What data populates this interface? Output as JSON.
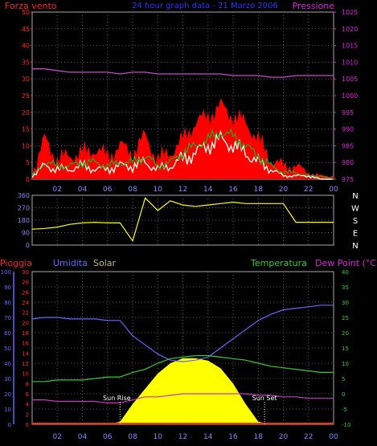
{
  "header": {
    "left_label": "Forza vento",
    "title": "24 hour graph data - 21 Marzo 2006",
    "right_label": "Pressione"
  },
  "colors": {
    "wind_gust": "#ff0000",
    "wind_avg": "#22aa22",
    "wind_speed": "#e8ffe8",
    "pressure": "#cc44cc",
    "direction": "#ffff00",
    "rain": "#ff3300",
    "humidity": "#6666ff",
    "solar": "#ffff00",
    "temperature": "#33cc33",
    "dew_point": "#cc33cc",
    "grid": "#5a5a5a",
    "axis_left": "#ff2222",
    "axis_right": "#dd22dd",
    "tick_text": "#8888ff"
  },
  "chart_data": [
    {
      "type": "line",
      "name": "wind_pressure",
      "ylabel": "Forza vento",
      "y2label": "Pressione",
      "ylim": [
        0,
        50
      ],
      "y2lim": [
        975,
        1025
      ],
      "yticks": [
        "0",
        "5",
        "10",
        "15",
        "20",
        "25",
        "30",
        "35",
        "40",
        "45",
        "50"
      ],
      "y2ticks": [
        "975",
        "980",
        "985",
        "990",
        "995",
        "1000",
        "1005",
        "1010",
        "1015",
        "1020",
        "1025"
      ],
      "x": [
        0,
        1,
        2,
        3,
        4,
        5,
        6,
        7,
        8,
        9,
        10,
        11,
        12,
        13,
        14,
        15,
        16,
        17,
        18,
        19,
        20,
        21,
        22,
        23,
        24
      ],
      "series": [
        {
          "key": "gust",
          "values": [
            2,
            12,
            6,
            7,
            8,
            9,
            7,
            10,
            8,
            13,
            6,
            8,
            12,
            17,
            19,
            22,
            19,
            17,
            12,
            6,
            4,
            4,
            2,
            1,
            1
          ]
        },
        {
          "key": "avg",
          "values": [
            1,
            5,
            4,
            4,
            5,
            5,
            4,
            5,
            5,
            7,
            4,
            5,
            8,
            10,
            12,
            14,
            13,
            10,
            7,
            4,
            2,
            2,
            1,
            1,
            0
          ]
        },
        {
          "key": "speed",
          "values": [
            1,
            4,
            3,
            3,
            4,
            3,
            3,
            4,
            4,
            5,
            3,
            4,
            6,
            8,
            10,
            12,
            10,
            8,
            5,
            3,
            1,
            1,
            1,
            0,
            0
          ]
        },
        {
          "key": "pressure",
          "values": [
            1008,
            1008,
            1007.5,
            1007,
            1007,
            1007,
            1007,
            1006.5,
            1007,
            1007,
            1006.5,
            1006.5,
            1006.5,
            1006.5,
            1006.5,
            1006.5,
            1006,
            1006,
            1006,
            1005.5,
            1005.5,
            1006,
            1006,
            1006,
            1006
          ]
        }
      ]
    },
    {
      "type": "line",
      "name": "wind_direction",
      "ylim": [
        0,
        360
      ],
      "yticks": [
        "0",
        "90",
        "180",
        "270",
        "360"
      ],
      "compass": [
        "N",
        "W",
        "S",
        "E",
        "N"
      ],
      "x": [
        0,
        1,
        2,
        3,
        4,
        5,
        6,
        7,
        8,
        9,
        10,
        11,
        12,
        13,
        14,
        15,
        16,
        17,
        18,
        19,
        20,
        21,
        22,
        23,
        24
      ],
      "values": [
        115,
        120,
        130,
        150,
        160,
        165,
        160,
        160,
        30,
        340,
        250,
        320,
        290,
        280,
        290,
        300,
        310,
        300,
        300,
        300,
        300,
        165,
        165,
        165,
        165
      ]
    },
    {
      "type": "line",
      "name": "weather",
      "legend": [
        "Pioggia",
        "Umidita",
        "Solar",
        "Temperatura",
        "Dew Point (°C)"
      ],
      "y_rain_ticks": [
        "0",
        "2",
        "4",
        "6",
        "8",
        "10",
        "12",
        "14",
        "16",
        "18",
        "20",
        "22",
        "24",
        "26",
        "28",
        "30"
      ],
      "y_hum_ticks": [
        "0",
        "10",
        "20",
        "30",
        "40",
        "50",
        "60",
        "70",
        "80",
        "90",
        "100"
      ],
      "y_temp_ticks": [
        "-10",
        "-5",
        "0",
        "5",
        "10",
        "15",
        "20",
        "25",
        "30",
        "35",
        "40"
      ],
      "y_rain_lim": [
        0,
        30
      ],
      "y_hum_lim": [
        0,
        100
      ],
      "y_temp_lim": [
        -10,
        40
      ],
      "x": [
        0,
        1,
        2,
        3,
        4,
        5,
        6,
        7,
        8,
        9,
        10,
        11,
        12,
        13,
        14,
        15,
        16,
        17,
        18,
        19,
        20,
        21,
        22,
        23,
        24
      ],
      "series": [
        {
          "key": "humidity",
          "values": [
            69,
            70,
            70,
            69,
            69,
            69,
            68,
            68,
            58,
            52,
            46,
            42,
            41,
            42,
            44,
            50,
            56,
            62,
            68,
            72,
            75,
            76,
            77,
            78,
            78
          ]
        },
        {
          "key": "temperature",
          "values": [
            4,
            4,
            4.5,
            4.5,
            4.5,
            5,
            5.5,
            5.5,
            7,
            8,
            10,
            11.5,
            12,
            12.5,
            12.5,
            12,
            11.5,
            11,
            10,
            9,
            8.5,
            8,
            7.5,
            7,
            7
          ]
        },
        {
          "key": "dew_point",
          "values": [
            -2,
            -2,
            -2.5,
            -2.5,
            -2.5,
            -2.5,
            -3,
            -3,
            -2,
            -1,
            -1,
            -0.5,
            0,
            0,
            0,
            0,
            0,
            0,
            -0.5,
            -0.5,
            -1,
            -1,
            -1.5,
            -1.5,
            -1.5
          ]
        },
        {
          "key": "solar",
          "values": [
            0,
            0,
            0,
            0,
            0,
            0,
            0,
            0.5,
            4,
            7,
            10,
            12,
            13,
            13,
            12.5,
            11,
            8,
            4,
            0.5,
            0,
            0,
            0,
            0,
            0,
            0
          ]
        },
        {
          "key": "rain",
          "values": [
            0,
            0,
            0,
            0,
            0,
            0,
            0,
            0,
            0,
            0,
            0,
            0,
            0,
            0,
            0,
            0,
            0,
            0,
            0,
            0,
            0,
            0,
            0,
            0,
            0
          ]
        }
      ],
      "annotations": [
        "Sun Rise",
        "Sun Set"
      ]
    }
  ],
  "x_ticks": [
    "02",
    "04",
    "06",
    "08",
    "10",
    "12",
    "14",
    "16",
    "18",
    "20",
    "22",
    "00"
  ]
}
